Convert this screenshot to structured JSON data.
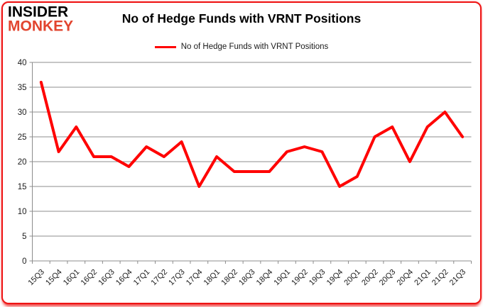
{
  "logo": {
    "line1": "INSIDER",
    "line2": "MONKEY"
  },
  "title": "No of Hedge Funds with VRNT Positions",
  "legend": {
    "label": "No of Hedge Funds with VRNT Positions"
  },
  "colors": {
    "line": "#ff0000",
    "grid": "#8c8c8c",
    "axis": "#8c8c8c",
    "border": "#ee1414",
    "logo_accent": "#e2452f",
    "label_text": "#1a1a1a"
  },
  "chart_data": {
    "type": "line",
    "title": "No of Hedge Funds with VRNT Positions",
    "categories": [
      "15Q3",
      "15Q4",
      "16Q1",
      "16Q2",
      "16Q3",
      "16Q4",
      "17Q1",
      "17Q2",
      "17Q3",
      "17Q4",
      "18Q1",
      "18Q2",
      "18Q3",
      "18Q4",
      "19Q1",
      "19Q2",
      "19Q3",
      "19Q4",
      "20Q1",
      "20Q2",
      "20Q3",
      "20Q4",
      "21Q1",
      "21Q2",
      "21Q3"
    ],
    "series": [
      {
        "name": "No of Hedge Funds with VRNT Positions",
        "values": [
          36,
          22,
          27,
          21,
          21,
          19,
          23,
          21,
          24,
          15,
          21,
          18,
          18,
          18,
          22,
          23,
          22,
          15,
          17,
          25,
          27,
          20,
          27,
          30,
          25
        ]
      }
    ],
    "xlabel": "",
    "ylabel": "",
    "ylim": [
      0,
      40
    ],
    "ytick_step": 5,
    "grid": true,
    "legend_position": "top",
    "x_label_rotation": -45
  }
}
